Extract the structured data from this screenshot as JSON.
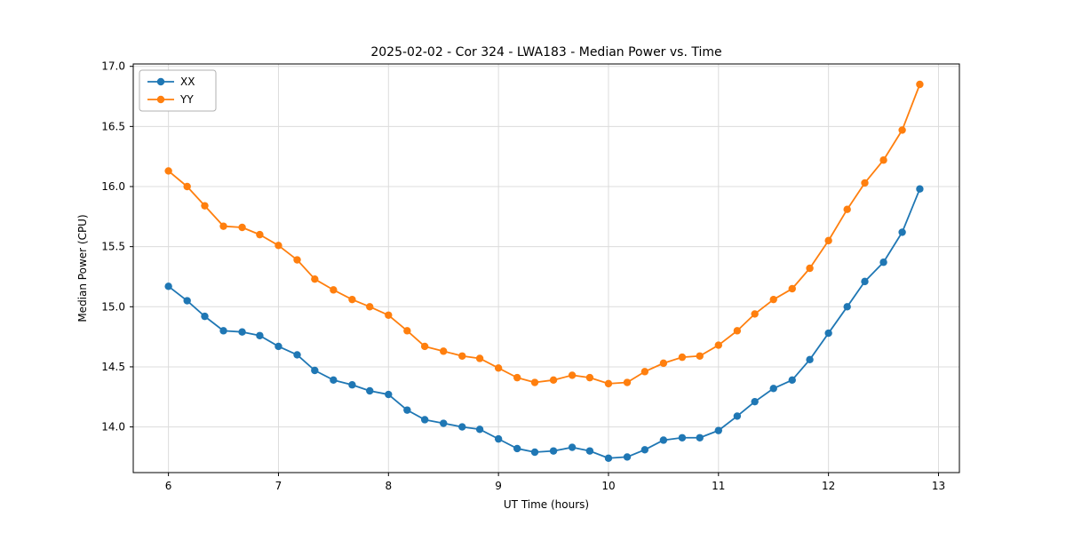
{
  "figure": {
    "background": "#ffffff",
    "axes_edge_color": "#000000",
    "grid_color": "#dcdcdc"
  },
  "chart_data": {
    "type": "line",
    "title": "2025-02-02 - Cor 324 - LWA183 - Median Power vs. Time",
    "xlabel": "UT Time (hours)",
    "ylabel": "Median Power (CPU)",
    "xlim": [
      5.68,
      13.19
    ],
    "ylim": [
      13.62,
      17.02
    ],
    "x_ticks": [
      6,
      7,
      8,
      9,
      10,
      11,
      12,
      13
    ],
    "y_ticks": [
      14.0,
      14.5,
      15.0,
      15.5,
      16.0,
      16.5,
      17.0
    ],
    "grid": true,
    "legend_position": "upper left",
    "x": [
      6.0,
      6.17,
      6.33,
      6.5,
      6.67,
      6.83,
      7.0,
      7.17,
      7.33,
      7.5,
      7.67,
      7.83,
      8.0,
      8.17,
      8.33,
      8.5,
      8.67,
      8.83,
      9.0,
      9.17,
      9.33,
      9.5,
      9.67,
      9.83,
      10.0,
      10.17,
      10.33,
      10.5,
      10.67,
      10.83,
      11.0,
      11.17,
      11.33,
      11.5,
      11.67,
      11.83,
      12.0,
      12.17,
      12.33,
      12.5,
      12.67,
      12.83
    ],
    "series": [
      {
        "name": "XX",
        "color": "#1f77b4",
        "values": [
          15.17,
          15.05,
          14.92,
          14.8,
          14.79,
          14.76,
          14.67,
          14.6,
          14.47,
          14.39,
          14.35,
          14.3,
          14.27,
          14.14,
          14.06,
          14.03,
          14.0,
          13.98,
          13.9,
          13.82,
          13.79,
          13.8,
          13.83,
          13.8,
          13.74,
          13.75,
          13.81,
          13.89,
          13.91,
          13.91,
          13.97,
          14.09,
          14.21,
          14.32,
          14.39,
          14.56,
          14.78,
          15.0,
          15.21,
          15.37,
          15.62,
          15.98
        ]
      },
      {
        "name": "YY",
        "color": "#ff7f0e",
        "values": [
          16.13,
          16.0,
          15.84,
          15.67,
          15.66,
          15.6,
          15.51,
          15.39,
          15.23,
          15.14,
          15.06,
          15.0,
          14.93,
          14.8,
          14.67,
          14.63,
          14.59,
          14.57,
          14.49,
          14.41,
          14.37,
          14.39,
          14.43,
          14.41,
          14.36,
          14.37,
          14.46,
          14.53,
          14.58,
          14.59,
          14.68,
          14.8,
          14.94,
          15.06,
          15.15,
          15.32,
          15.55,
          15.81,
          16.03,
          16.22,
          16.47,
          16.85
        ]
      }
    ]
  }
}
